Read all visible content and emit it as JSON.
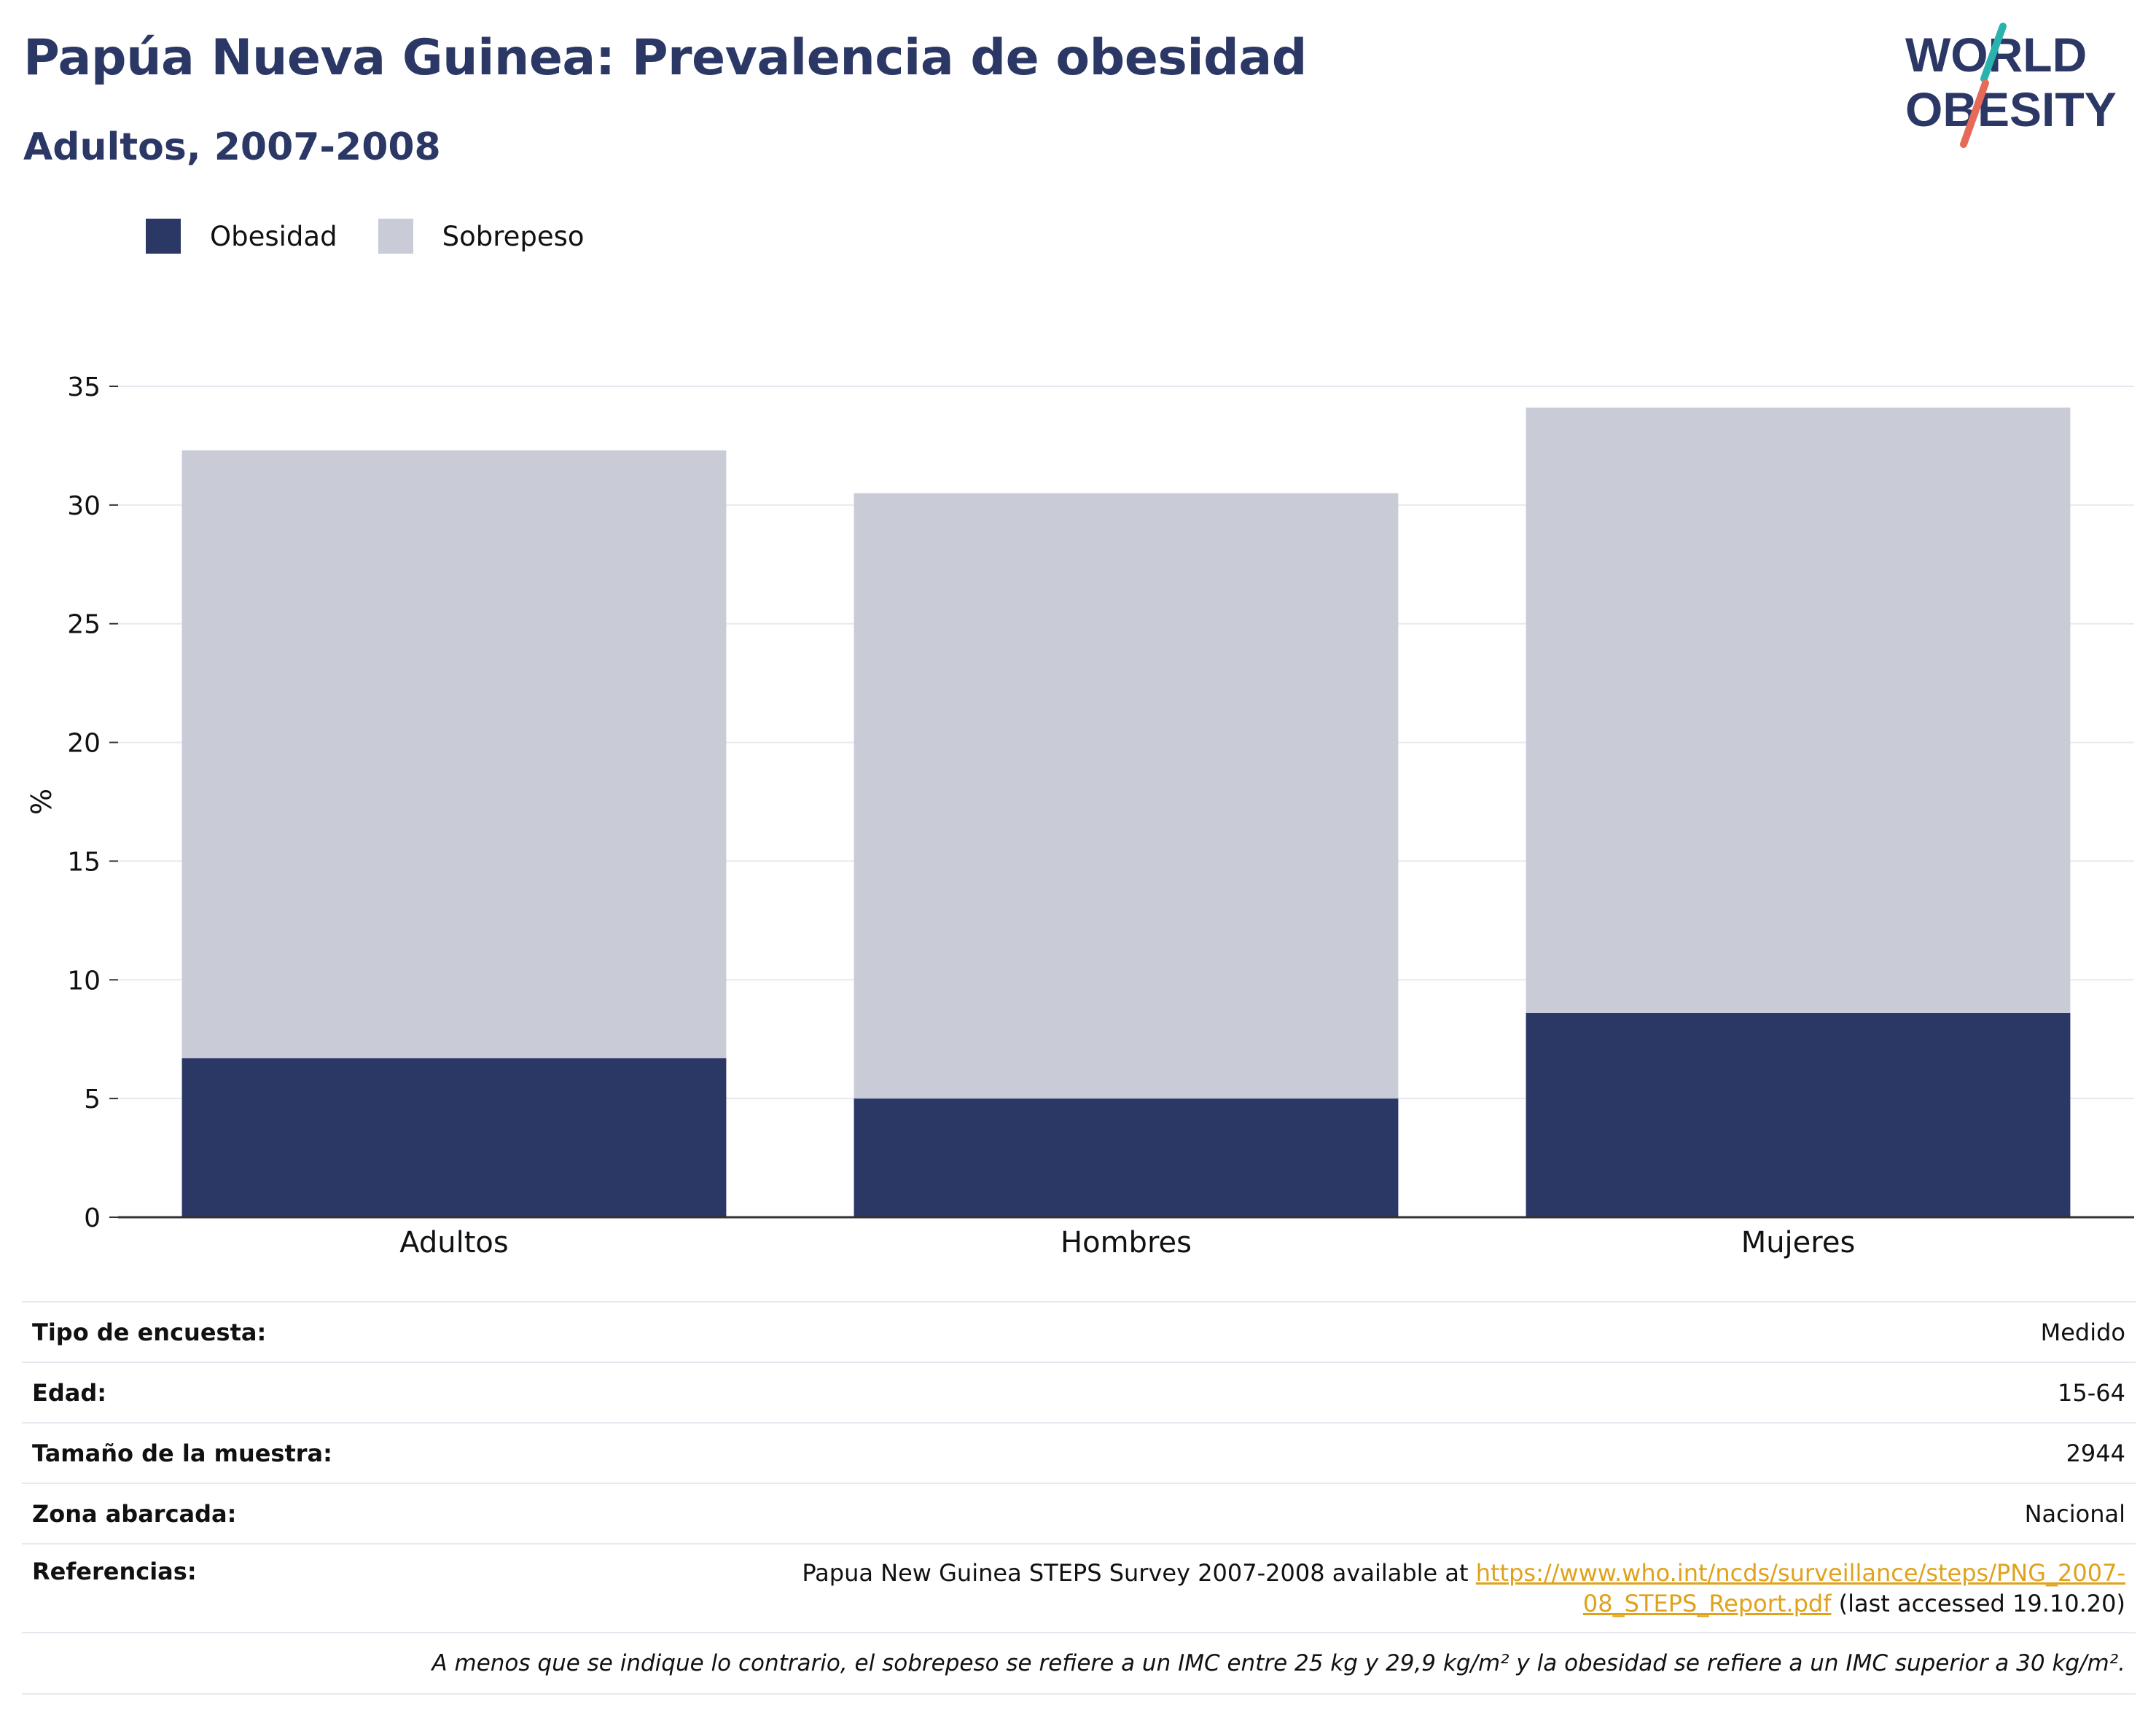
{
  "header": {
    "title": "Papúa Nueva Guinea: Prevalencia de obesidad",
    "subtitle": "Adultos, 2007-2008"
  },
  "logo": {
    "line1": "WORLD",
    "line2": "OBESITY",
    "teal": "#2ab3ad",
    "coral": "#e66a57",
    "navy": "#2b3765"
  },
  "colors": {
    "obesity": "#2b3765",
    "overweight": "#c9ccd7",
    "grid": "#e7e9f1",
    "axis": "#333333"
  },
  "chart_data": {
    "type": "bar",
    "stacked": true,
    "categories": [
      "Adultos",
      "Hombres",
      "Mujeres"
    ],
    "series": [
      {
        "name": "Obesidad",
        "values": [
          6.7,
          5.0,
          8.6
        ],
        "color": "#2b3765"
      },
      {
        "name": "Sobrepeso",
        "values": [
          25.6,
          25.5,
          25.5
        ],
        "color": "#c9ccd7"
      }
    ],
    "ylabel": "%",
    "ylim": [
      0,
      35
    ],
    "yticks": [
      0,
      5,
      10,
      15,
      20,
      25,
      30,
      35
    ],
    "grid": true,
    "legend": "top-left"
  },
  "info": {
    "survey_type_label": "Tipo de encuesta:",
    "survey_type_value": "Medido",
    "age_label": "Edad:",
    "age_value": "15-64",
    "sample_label": "Tamaño de la muestra:",
    "sample_value": "2944",
    "area_label": "Zona abarcada:",
    "area_value": "Nacional",
    "refs_label": "Referencias:",
    "refs_text": "Papua New Guinea STEPS Survey 2007-2008 available at ",
    "refs_link_1": "https://www.who.int/ncds/surveillance/steps/PNG_2007-",
    "refs_link_2": "08_STEPS_Report.pdf",
    "refs_suffix": " (last accessed 19.10.20)",
    "note": "A menos que se indique lo contrario, el sobrepeso se refiere a un IMC entre 25 kg y 29,9 kg/m² y la obesidad se refiere a un IMC superior a 30 kg/m²."
  }
}
